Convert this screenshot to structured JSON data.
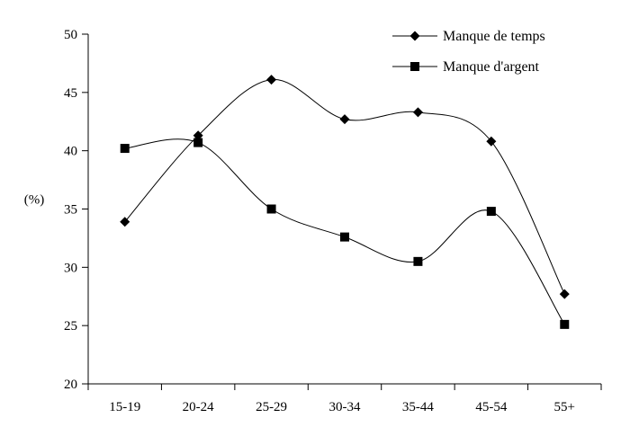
{
  "chart_data": {
    "type": "line",
    "title": "",
    "xlabel": "",
    "ylabel": "(%)",
    "categories": [
      "15-19",
      "20-24",
      "25-29",
      "30-34",
      "35-44",
      "45-54",
      "55+"
    ],
    "ylim": [
      20,
      50
    ],
    "yticks": [
      20,
      25,
      30,
      35,
      40,
      45,
      50
    ],
    "grid": false,
    "legend_position": "top-right",
    "series": [
      {
        "name": "Manque de temps",
        "marker": "diamond",
        "color": "#000000",
        "values": [
          33.9,
          41.3,
          46.1,
          42.7,
          43.3,
          40.8,
          27.7
        ]
      },
      {
        "name": "Manque d'argent",
        "marker": "square",
        "color": "#000000",
        "values": [
          40.2,
          40.7,
          35.0,
          32.6,
          30.5,
          34.8,
          25.1
        ]
      }
    ]
  }
}
